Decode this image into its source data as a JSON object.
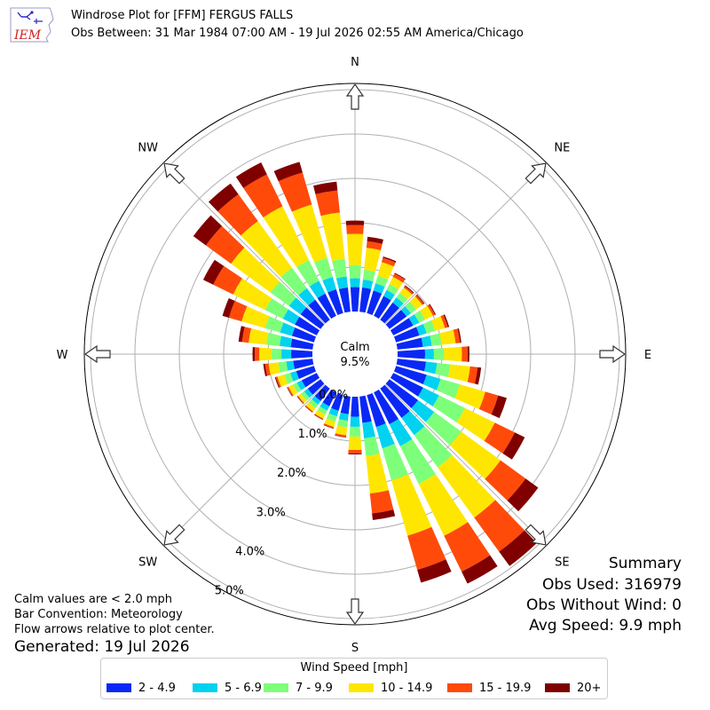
{
  "header": {
    "logo_text": "IEM",
    "title_line1": "Windrose Plot for [FFM] FERGUS FALLS",
    "title_line2": "Obs Between: 31 Mar 1984 07:00 AM - 19 Jul 2026 02:55 AM America/Chicago"
  },
  "summary": {
    "title": "Summary",
    "obs_used": "Obs Used: 316979",
    "obs_without_wind": "Obs Without Wind: 0",
    "avg_speed": "Avg Speed: 9.9 mph"
  },
  "notes": {
    "calm_note": "Calm values are < 2.0 mph",
    "bar_convention": "Bar Convention: Meteorology",
    "flow_arrows": "Flow arrows relative to plot center.",
    "generated": "Generated: 19 Jul 2026"
  },
  "chart_data": {
    "type": "windrose",
    "calm_label": "Calm",
    "calm_value": "9.5%",
    "rlim": [
      0,
      6
    ],
    "ring_values": [
      1,
      2,
      3,
      4,
      5
    ],
    "radial_tick_labels": [
      "0.0%",
      "1.0%",
      "2.0%",
      "3.0%",
      "4.0%",
      "5.0%"
    ],
    "compass_labels": [
      {
        "label": "N",
        "deg": 0
      },
      {
        "label": "NE",
        "deg": 45
      },
      {
        "label": "E",
        "deg": 90
      },
      {
        "label": "SE",
        "deg": 135
      },
      {
        "label": "S",
        "deg": 180
      },
      {
        "label": "SW",
        "deg": 225
      },
      {
        "label": "W",
        "deg": 270
      },
      {
        "label": "NW",
        "deg": 315
      }
    ],
    "grid": true,
    "bin_width_deg": 10,
    "legend_title": "Wind Speed [mph]",
    "legend_position": "bottom",
    "speed_bins": [
      {
        "label": "2 - 4.9",
        "color": "#0a28f5"
      },
      {
        "label": "5 - 6.9",
        "color": "#00d2f0"
      },
      {
        "label": "7 - 9.9",
        "color": "#7dff7a"
      },
      {
        "label": "10 - 14.9",
        "color": "#ffe600"
      },
      {
        "label": "15 - 19.9",
        "color": "#ff4a0a"
      },
      {
        "label": "20+",
        "color": "#800000"
      }
    ],
    "directions": [
      0,
      10,
      20,
      30,
      40,
      50,
      60,
      70,
      80,
      90,
      100,
      110,
      120,
      130,
      140,
      150,
      160,
      170,
      180,
      190,
      200,
      210,
      220,
      230,
      240,
      250,
      260,
      270,
      280,
      290,
      300,
      310,
      320,
      330,
      340,
      350
    ],
    "cumulative_percent": [
      [
        0.55,
        0.75,
        1.05,
        1.75,
        1.95,
        2.05
      ],
      [
        0.55,
        0.73,
        0.95,
        1.45,
        1.6,
        1.7
      ],
      [
        0.53,
        0.7,
        0.88,
        1.2,
        1.3,
        1.33
      ],
      [
        0.5,
        0.65,
        0.8,
        0.98,
        1.06,
        1.08
      ],
      [
        0.48,
        0.62,
        0.75,
        0.9,
        0.94,
        0.96
      ],
      [
        0.48,
        0.6,
        0.75,
        0.92,
        0.96,
        0.98
      ],
      [
        0.5,
        0.65,
        0.8,
        1.0,
        1.05,
        1.07
      ],
      [
        0.55,
        0.72,
        0.92,
        1.15,
        1.22,
        1.25
      ],
      [
        0.58,
        0.78,
        1.0,
        1.32,
        1.42,
        1.45
      ],
      [
        0.62,
        0.82,
        1.05,
        1.45,
        1.58,
        1.62
      ],
      [
        0.65,
        0.9,
        1.2,
        1.65,
        1.82,
        1.9
      ],
      [
        0.72,
        1.05,
        1.5,
        2.1,
        2.4,
        2.6
      ],
      [
        0.75,
        1.15,
        1.8,
        2.55,
        3.05,
        3.3
      ],
      [
        0.8,
        1.25,
        2.0,
        3.1,
        3.8,
        4.15
      ],
      [
        0.82,
        1.3,
        2.2,
        3.6,
        4.55,
        4.95
      ],
      [
        0.8,
        1.35,
        2.3,
        3.6,
        4.5,
        4.8
      ],
      [
        0.75,
        1.25,
        2.0,
        3.3,
        4.1,
        4.4
      ],
      [
        0.6,
        0.95,
        1.35,
        2.2,
        2.65,
        2.8
      ],
      [
        0.45,
        0.68,
        0.9,
        1.2,
        1.28,
        1.3
      ],
      [
        0.4,
        0.55,
        0.7,
        0.88,
        0.92,
        0.93
      ],
      [
        0.37,
        0.5,
        0.63,
        0.75,
        0.78,
        0.79
      ],
      [
        0.35,
        0.46,
        0.56,
        0.66,
        0.68,
        0.69
      ],
      [
        0.35,
        0.45,
        0.55,
        0.64,
        0.66,
        0.67
      ],
      [
        0.36,
        0.46,
        0.55,
        0.63,
        0.65,
        0.66
      ],
      [
        0.38,
        0.5,
        0.6,
        0.71,
        0.74,
        0.75
      ],
      [
        0.42,
        0.56,
        0.7,
        0.86,
        0.9,
        0.92
      ],
      [
        0.44,
        0.6,
        0.78,
        1.0,
        1.08,
        1.12
      ],
      [
        0.48,
        0.7,
        0.92,
        1.2,
        1.3,
        1.35
      ],
      [
        0.5,
        0.75,
        1.05,
        1.45,
        1.6,
        1.68
      ],
      [
        0.52,
        0.8,
        1.15,
        1.7,
        2.0,
        2.15
      ],
      [
        0.55,
        0.85,
        1.3,
        2.1,
        2.6,
        2.85
      ],
      [
        0.56,
        0.88,
        1.4,
        2.5,
        3.2,
        3.55
      ],
      [
        0.56,
        0.88,
        1.45,
        2.75,
        3.5,
        3.8
      ],
      [
        0.56,
        0.88,
        1.4,
        2.75,
        3.55,
        3.85
      ],
      [
        0.56,
        0.85,
        1.3,
        2.55,
        3.3,
        3.55
      ],
      [
        0.55,
        0.8,
        1.2,
        2.25,
        2.75,
        2.95
      ]
    ]
  }
}
